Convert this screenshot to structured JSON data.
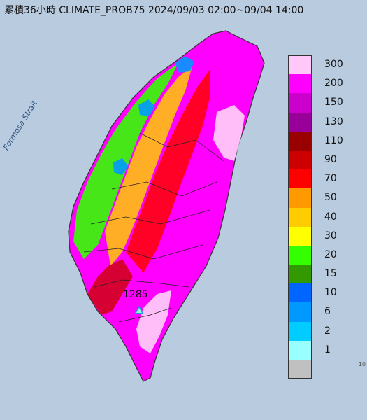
{
  "title": "累積36小時 CLIMATE_PROB75 2024/09/03 02:00~09/04 14:00",
  "strait_label": "Formosa Strait",
  "station_marker": {
    "label": "1285",
    "icon": "triangle-station-icon"
  },
  "corner_text": "10",
  "legend": {
    "unit_levels": [
      {
        "label": "300",
        "color": "#ffc8f8"
      },
      {
        "label": "200",
        "color": "#ff00ff"
      },
      {
        "label": "150",
        "color": "#cc00cc"
      },
      {
        "label": "130",
        "color": "#990099"
      },
      {
        "label": "110",
        "color": "#990000"
      },
      {
        "label": "90",
        "color": "#cc0000"
      },
      {
        "label": "70",
        "color": "#ff0000"
      },
      {
        "label": "50",
        "color": "#ff9900"
      },
      {
        "label": "40",
        "color": "#ffcc00"
      },
      {
        "label": "30",
        "color": "#ffff00"
      },
      {
        "label": "20",
        "color": "#33ff00"
      },
      {
        "label": "15",
        "color": "#339900"
      },
      {
        "label": "10",
        "color": "#0066ff"
      },
      {
        "label": "6",
        "color": "#0099ff"
      },
      {
        "label": "2",
        "color": "#00ccff"
      },
      {
        "label": "1",
        "color": "#99ffff"
      },
      {
        "label": "",
        "color": "#c0c0c0"
      }
    ]
  }
}
